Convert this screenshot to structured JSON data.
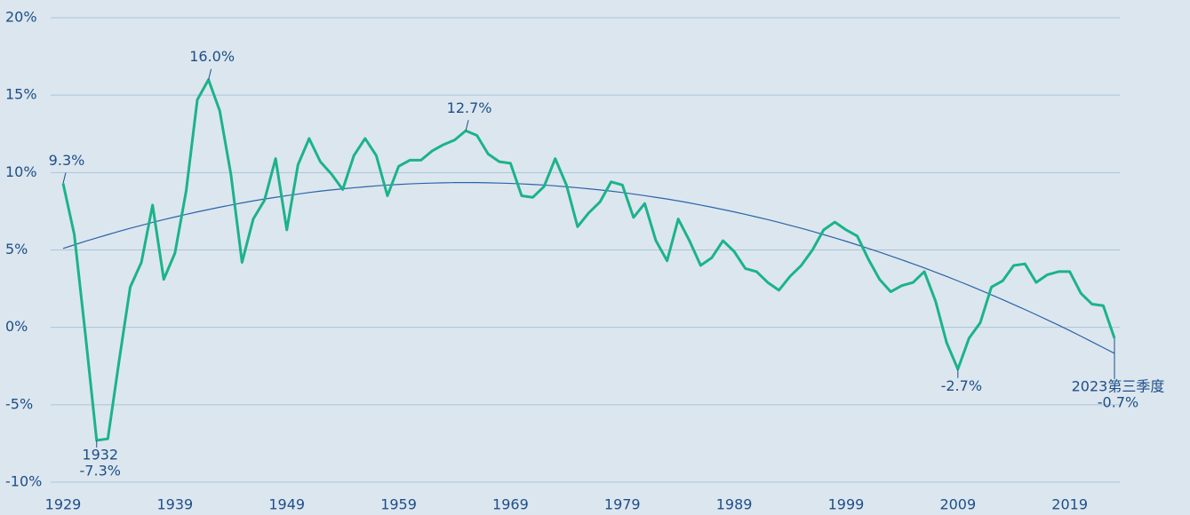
{
  "chart_data": {
    "type": "line",
    "x": [
      1929,
      1930,
      1931,
      1932,
      1933,
      1934,
      1935,
      1936,
      1937,
      1938,
      1939,
      1940,
      1941,
      1942,
      1943,
      1944,
      1945,
      1946,
      1947,
      1948,
      1949,
      1950,
      1951,
      1952,
      1953,
      1954,
      1955,
      1956,
      1957,
      1958,
      1959,
      1960,
      1961,
      1962,
      1963,
      1964,
      1965,
      1966,
      1967,
      1968,
      1969,
      1970,
      1971,
      1972,
      1973,
      1974,
      1975,
      1976,
      1977,
      1978,
      1979,
      1980,
      1981,
      1982,
      1983,
      1984,
      1985,
      1986,
      1987,
      1988,
      1989,
      1990,
      1991,
      1992,
      1993,
      1994,
      1995,
      1996,
      1997,
      1998,
      1999,
      2000,
      2001,
      2002,
      2003,
      2004,
      2005,
      2006,
      2007,
      2008,
      2009,
      2010,
      2011,
      2012,
      2013,
      2014,
      2015,
      2016,
      2017,
      2018,
      2019,
      2020,
      2021,
      2022,
      2023
    ],
    "series": [
      {
        "color": "#1bb38a",
        "values": [
          9.3,
          6.0,
          -0.5,
          -7.3,
          -7.2,
          -2.2,
          2.6,
          4.2,
          7.9,
          3.1,
          4.8,
          8.8,
          14.7,
          16.0,
          14.0,
          9.9,
          4.2,
          7.0,
          8.2,
          10.9,
          6.3,
          10.5,
          12.2,
          10.7,
          9.9,
          8.9,
          11.1,
          12.2,
          11.1,
          8.5,
          10.4,
          10.8,
          10.8,
          11.4,
          11.8,
          12.1,
          12.7,
          12.4,
          11.2,
          10.7,
          10.6,
          8.5,
          8.4,
          9.1,
          10.9,
          9.2,
          6.5,
          7.4,
          8.1,
          9.4,
          9.2,
          7.1,
          8.0,
          5.6,
          4.3,
          7.0,
          5.6,
          4.0,
          4.5,
          5.6,
          4.9,
          3.8,
          3.6,
          2.9,
          2.4,
          3.3,
          4.0,
          5.0,
          6.3,
          6.8,
          6.3,
          5.9,
          4.4,
          3.1,
          2.3,
          2.7,
          2.9,
          3.6,
          1.7,
          -1.0,
          -2.7,
          -0.7,
          0.3,
          2.6,
          3.0,
          4.0,
          4.1,
          2.9,
          3.4,
          3.6,
          3.6,
          2.2,
          1.5,
          1.4,
          -0.7
        ],
        "value_labels": [
          "9.3%",
          null,
          null,
          "-7.3%",
          null,
          null,
          null,
          null,
          null,
          null,
          null,
          null,
          null,
          "16.0%",
          null,
          null,
          null,
          null,
          null,
          null,
          null,
          null,
          null,
          null,
          null,
          null,
          null,
          null,
          null,
          null,
          null,
          null,
          null,
          null,
          null,
          null,
          "12.7%",
          null,
          null,
          null,
          null,
          null,
          null,
          null,
          null,
          null,
          null,
          null,
          null,
          null,
          null,
          null,
          null,
          null,
          null,
          null,
          null,
          null,
          null,
          null,
          null,
          null,
          null,
          null,
          null,
          null,
          null,
          null,
          null,
          null,
          null,
          null,
          null,
          null,
          null,
          null,
          null,
          null,
          null,
          null,
          "-2.7%",
          null,
          null,
          null,
          null,
          null,
          null,
          null,
          null,
          null,
          null,
          null,
          null,
          null,
          "-0.7%"
        ]
      },
      {
        "color": "#2a64a8",
        "values": [
          5.1,
          5.33,
          5.56,
          5.78,
          5.99,
          6.2,
          6.4,
          6.59,
          6.78,
          6.96,
          7.13,
          7.3,
          7.46,
          7.61,
          7.76,
          7.9,
          8.04,
          8.17,
          8.29,
          8.4,
          8.51,
          8.61,
          8.71,
          8.8,
          8.88,
          8.95,
          9.02,
          9.08,
          9.14,
          9.19,
          9.23,
          9.27,
          9.3,
          9.32,
          9.34,
          9.35,
          9.35,
          9.35,
          9.34,
          9.32,
          9.3,
          9.27,
          9.23,
          9.19,
          9.14,
          9.08,
          9.02,
          8.95,
          8.88,
          8.8,
          8.71,
          8.61,
          8.51,
          8.4,
          8.29,
          8.17,
          8.04,
          7.9,
          7.76,
          7.61,
          7.46,
          7.3,
          7.13,
          6.96,
          6.78,
          6.59,
          6.4,
          6.2,
          5.99,
          5.78,
          5.56,
          5.33,
          5.1,
          4.86,
          4.61,
          4.36,
          4.1,
          3.84,
          3.56,
          3.29,
          3.0,
          2.71,
          2.41,
          2.1,
          1.79,
          1.47,
          1.15,
          0.82,
          0.48,
          0.14,
          -0.21,
          -0.57,
          -0.94,
          -1.31,
          -1.68
        ]
      }
    ],
    "annotations": [
      {
        "text": "1932",
        "x": 1932
      },
      {
        "text": "2023第三季度",
        "x": 2023
      }
    ],
    "xlim": [
      1929,
      2023
    ],
    "xticks": [
      1929,
      1939,
      1949,
      1959,
      1969,
      1979,
      1989,
      1999,
      2009,
      2019
    ],
    "ylim": [
      -10,
      20
    ],
    "yticks": [
      {
        "value": -10,
        "label": "-10%"
      },
      {
        "value": -5,
        "label": "-5%"
      },
      {
        "value": 0,
        "label": "0%"
      },
      {
        "value": 5,
        "label": "5%"
      },
      {
        "value": 10,
        "label": "10%"
      },
      {
        "value": 15,
        "label": "15%"
      },
      {
        "value": 20,
        "label": "20%"
      }
    ],
    "grid": true
  }
}
